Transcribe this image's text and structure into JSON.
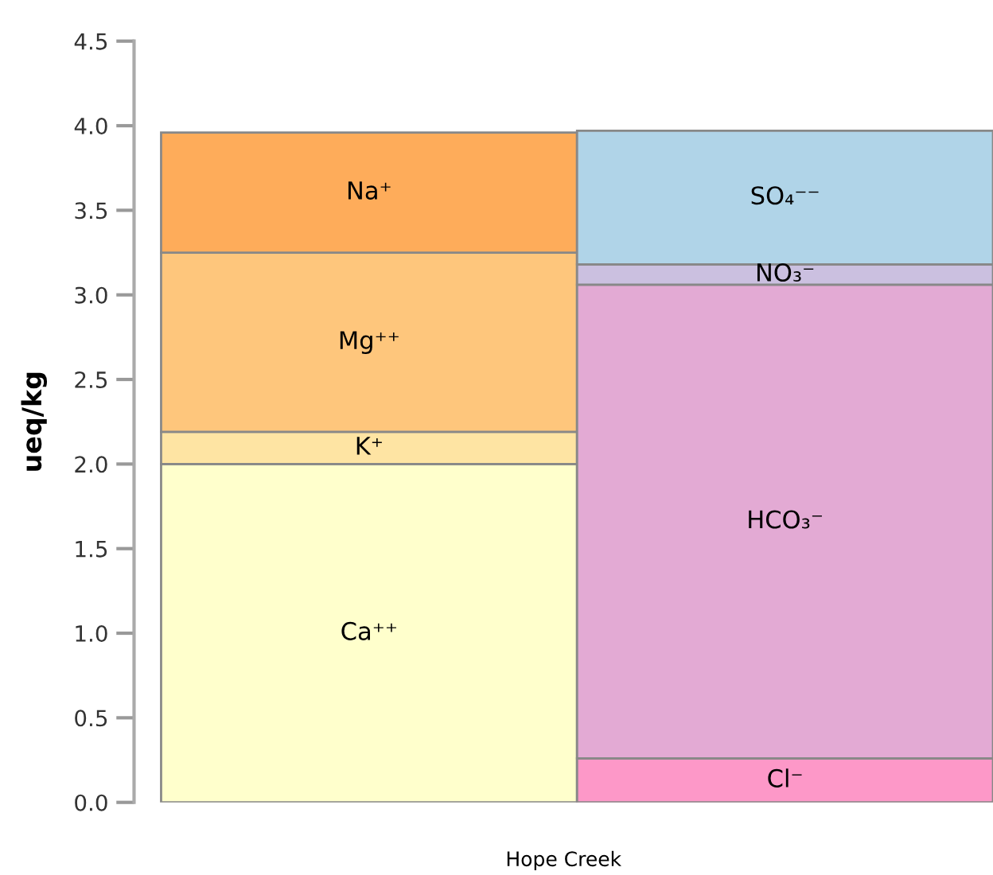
{
  "chart_data": {
    "type": "bar",
    "stacked": true,
    "xlabel": "Hope Creek",
    "ylabel": "ueq/kg",
    "categories": [
      null,
      null
    ],
    "series": [
      {
        "name": "Ca⁺⁺",
        "color": "#ffffcc",
        "values": [
          2.0,
          null
        ]
      },
      {
        "name": "K⁺",
        "color": "#fee4a3",
        "values": [
          0.19,
          null
        ]
      },
      {
        "name": "Mg⁺⁺",
        "color": "#fec67c",
        "values": [
          1.06,
          null
        ]
      },
      {
        "name": "Na⁺",
        "color": "#feac5a",
        "values": [
          0.71,
          null
        ]
      },
      {
        "name": "Cl⁻",
        "color": "#fd98c8",
        "values": [
          null,
          0.26
        ]
      },
      {
        "name": "HCO₃⁻",
        "color": "#e3aad4",
        "values": [
          null,
          2.8
        ]
      },
      {
        "name": "NO₃⁻",
        "color": "#cbc0e0",
        "values": [
          null,
          0.12
        ]
      },
      {
        "name": "SO₄⁻⁻",
        "color": "#b0d4e8",
        "values": [
          null,
          0.79
        ]
      }
    ],
    "ylim": [
      0,
      4.5
    ],
    "yticks": [
      {
        "value": 0,
        "label": "0.0"
      },
      0.5,
      {
        "value": 1,
        "label": "1.0"
      },
      1.5,
      {
        "value": 2,
        "label": "2.0"
      },
      2.5,
      {
        "value": 3,
        "label": "3.0"
      },
      3.5,
      {
        "value": 4,
        "label": "4.0"
      },
      4.5
    ],
    "tick_labels": "y",
    "grid": false,
    "legend": false
  }
}
